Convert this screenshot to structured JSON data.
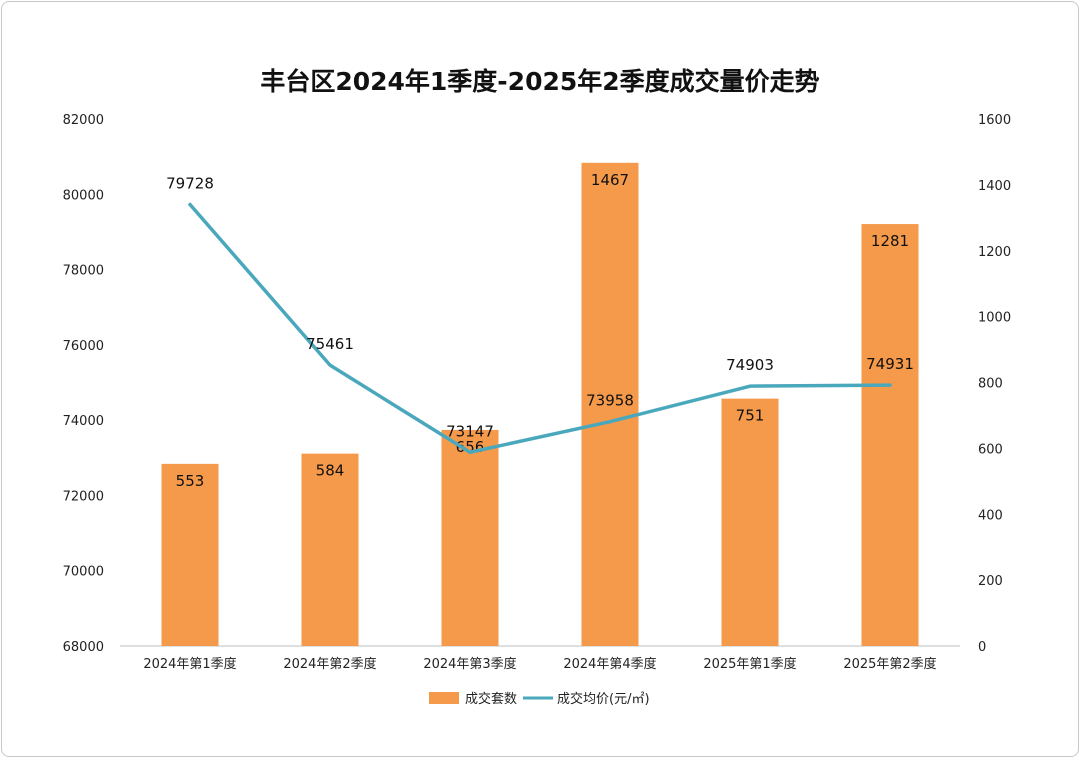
{
  "chart_data": {
    "type": "bar+line",
    "title": "丰台区2024年1季度-2025年2季度成交量价走势",
    "categories": [
      "2024年第1季度",
      "2024年第2季度",
      "2024年第3季度",
      "2024年第4季度",
      "2025年第1季度",
      "2025年第2季度"
    ],
    "series": [
      {
        "name": "成交套数",
        "type": "bar",
        "axis": "right",
        "color": "#f5994a",
        "values": [
          553,
          584,
          656,
          1467,
          751,
          1281
        ]
      },
      {
        "name": "成交均价(元/㎡)",
        "type": "line",
        "axis": "left",
        "color": "#4aa8bd",
        "values": [
          79728,
          75461,
          73147,
          73958,
          74903,
          74931
        ]
      }
    ],
    "y_left": {
      "min": 68000,
      "max": 82000,
      "step": 2000,
      "ticks": [
        "68000",
        "70000",
        "72000",
        "74000",
        "76000",
        "78000",
        "80000",
        "82000"
      ]
    },
    "y_right": {
      "min": 0,
      "max": 1600,
      "step": 200,
      "ticks": [
        "0",
        "200",
        "400",
        "600",
        "800",
        "1000",
        "1200",
        "1400",
        "1600"
      ]
    },
    "grid": false,
    "legend_position": "bottom"
  }
}
